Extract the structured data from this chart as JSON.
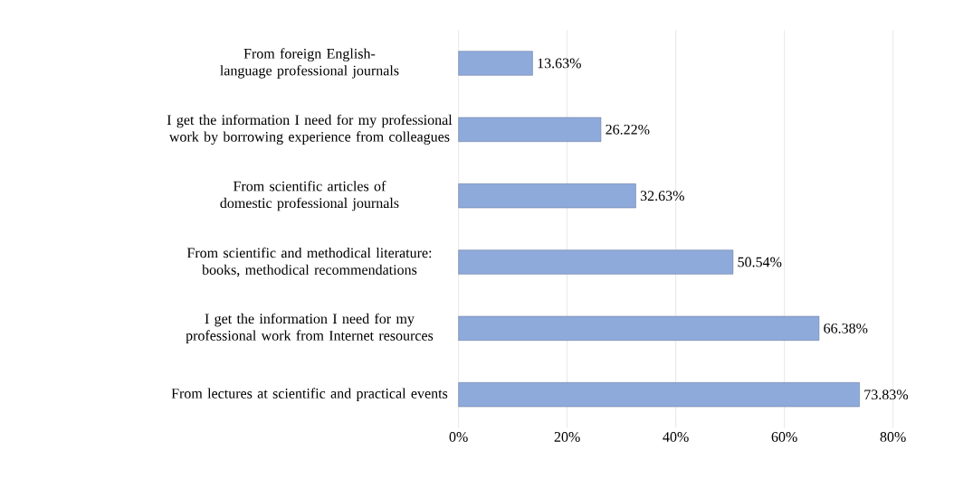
{
  "chart_data": {
    "type": "bar",
    "orientation": "horizontal",
    "categories": [
      "From foreign English-language professional journals",
      "I get the information I need for my professional work by borrowing experience from colleagues",
      "From scientific articles of domestic professional journals",
      "From scientific and methodical literature: books, methodical recommendations",
      "I get the information I need for my professional work from Internet resources",
      "From lectures at scientific and practical events"
    ],
    "values": [
      13.63,
      26.22,
      32.63,
      50.54,
      66.38,
      73.83
    ],
    "value_labels": [
      "13.63%",
      "26.22%",
      "32.63%",
      "50.54%",
      "66.38%",
      "73.83%"
    ],
    "color": "#8eaadb",
    "xlim": [
      0,
      80
    ],
    "xticks": [
      {
        "value": 0,
        "label": "0%"
      },
      {
        "value": 20,
        "label": "20%"
      },
      {
        "value": 40,
        "label": "40%"
      },
      {
        "value": 60,
        "label": "60%"
      },
      {
        "value": 80,
        "label": "80%"
      }
    ],
    "grid": "x"
  }
}
